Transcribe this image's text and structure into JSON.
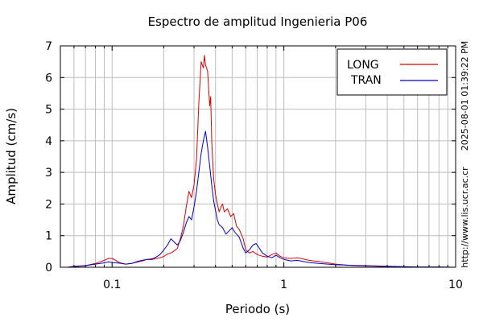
{
  "chart_data": {
    "type": "line",
    "title": "Espectro de amplitud Ingenieria P06",
    "xlabel": "Periodo (s)",
    "ylabel": "Amplitud (cm/s)",
    "x_scale": "log",
    "xlim": [
      0.05,
      10
    ],
    "ylim": [
      0,
      7
    ],
    "grid": true,
    "legend_position": "top-right",
    "x_tick_labels": [
      {
        "value": 0.1,
        "label": "0.1"
      },
      {
        "value": 1,
        "label": "1"
      },
      {
        "value": 10,
        "label": "10"
      }
    ],
    "y_tick_labels": [
      "0",
      "1",
      "2",
      "3",
      "4",
      "5",
      "6",
      "7"
    ],
    "timestamp": "2025-08-01 01:39:22 PM",
    "url": "http://www.lis.ucr.ac.cr",
    "series": [
      {
        "name": "LONG",
        "color": "#dd0000",
        "points": [
          [
            0.055,
            0.0
          ],
          [
            0.06,
            0.03
          ],
          [
            0.07,
            0.05
          ],
          [
            0.08,
            0.12
          ],
          [
            0.09,
            0.22
          ],
          [
            0.095,
            0.28
          ],
          [
            0.1,
            0.28
          ],
          [
            0.105,
            0.22
          ],
          [
            0.11,
            0.15
          ],
          [
            0.12,
            0.1
          ],
          [
            0.13,
            0.12
          ],
          [
            0.14,
            0.16
          ],
          [
            0.15,
            0.2
          ],
          [
            0.16,
            0.25
          ],
          [
            0.17,
            0.24
          ],
          [
            0.18,
            0.28
          ],
          [
            0.19,
            0.3
          ],
          [
            0.2,
            0.34
          ],
          [
            0.21,
            0.42
          ],
          [
            0.22,
            0.45
          ],
          [
            0.23,
            0.52
          ],
          [
            0.24,
            0.6
          ],
          [
            0.25,
            0.9
          ],
          [
            0.26,
            1.3
          ],
          [
            0.27,
            1.9
          ],
          [
            0.28,
            2.4
          ],
          [
            0.29,
            2.2
          ],
          [
            0.3,
            2.6
          ],
          [
            0.31,
            3.4
          ],
          [
            0.32,
            5.2
          ],
          [
            0.33,
            6.5
          ],
          [
            0.34,
            6.3
          ],
          [
            0.345,
            6.7
          ],
          [
            0.35,
            6.4
          ],
          [
            0.36,
            6.2
          ],
          [
            0.37,
            5.1
          ],
          [
            0.375,
            5.4
          ],
          [
            0.38,
            4.0
          ],
          [
            0.39,
            2.8
          ],
          [
            0.4,
            2.3
          ],
          [
            0.41,
            2.0
          ],
          [
            0.42,
            1.75
          ],
          [
            0.43,
            1.9
          ],
          [
            0.44,
            2.0
          ],
          [
            0.45,
            1.75
          ],
          [
            0.47,
            1.85
          ],
          [
            0.49,
            1.6
          ],
          [
            0.51,
            1.7
          ],
          [
            0.53,
            1.3
          ],
          [
            0.55,
            1.2
          ],
          [
            0.58,
            0.9
          ],
          [
            0.6,
            0.55
          ],
          [
            0.63,
            0.45
          ],
          [
            0.66,
            0.5
          ],
          [
            0.7,
            0.4
          ],
          [
            0.75,
            0.35
          ],
          [
            0.8,
            0.32
          ],
          [
            0.85,
            0.4
          ],
          [
            0.9,
            0.45
          ],
          [
            0.95,
            0.35
          ],
          [
            1.0,
            0.3
          ],
          [
            1.1,
            0.28
          ],
          [
            1.2,
            0.3
          ],
          [
            1.3,
            0.26
          ],
          [
            1.4,
            0.22
          ],
          [
            1.6,
            0.18
          ],
          [
            1.8,
            0.14
          ],
          [
            2.0,
            0.1
          ],
          [
            2.3,
            0.07
          ],
          [
            2.6,
            0.05
          ],
          [
            3.0,
            0.04
          ],
          [
            3.5,
            0.03
          ],
          [
            4.0,
            0.02
          ],
          [
            4.3,
            0.0
          ]
        ]
      },
      {
        "name": "TRAN",
        "color": "#0000cc",
        "points": [
          [
            0.055,
            0.0
          ],
          [
            0.06,
            0.02
          ],
          [
            0.07,
            0.05
          ],
          [
            0.08,
            0.1
          ],
          [
            0.09,
            0.14
          ],
          [
            0.095,
            0.17
          ],
          [
            0.1,
            0.15
          ],
          [
            0.11,
            0.13
          ],
          [
            0.12,
            0.1
          ],
          [
            0.13,
            0.12
          ],
          [
            0.14,
            0.18
          ],
          [
            0.15,
            0.22
          ],
          [
            0.16,
            0.25
          ],
          [
            0.17,
            0.26
          ],
          [
            0.18,
            0.32
          ],
          [
            0.19,
            0.4
          ],
          [
            0.2,
            0.55
          ],
          [
            0.21,
            0.7
          ],
          [
            0.22,
            0.9
          ],
          [
            0.23,
            0.8
          ],
          [
            0.24,
            0.7
          ],
          [
            0.25,
            0.85
          ],
          [
            0.26,
            1.1
          ],
          [
            0.27,
            1.4
          ],
          [
            0.28,
            1.6
          ],
          [
            0.29,
            1.5
          ],
          [
            0.3,
            1.9
          ],
          [
            0.31,
            2.4
          ],
          [
            0.32,
            3.0
          ],
          [
            0.33,
            3.6
          ],
          [
            0.34,
            4.0
          ],
          [
            0.35,
            4.3
          ],
          [
            0.36,
            3.8
          ],
          [
            0.37,
            3.2
          ],
          [
            0.38,
            2.6
          ],
          [
            0.39,
            2.1
          ],
          [
            0.4,
            1.8
          ],
          [
            0.41,
            1.5
          ],
          [
            0.42,
            1.35
          ],
          [
            0.44,
            1.25
          ],
          [
            0.46,
            1.05
          ],
          [
            0.48,
            1.15
          ],
          [
            0.5,
            1.25
          ],
          [
            0.52,
            1.1
          ],
          [
            0.55,
            0.95
          ],
          [
            0.58,
            0.6
          ],
          [
            0.6,
            0.45
          ],
          [
            0.63,
            0.55
          ],
          [
            0.66,
            0.7
          ],
          [
            0.69,
            0.75
          ],
          [
            0.72,
            0.6
          ],
          [
            0.75,
            0.45
          ],
          [
            0.8,
            0.35
          ],
          [
            0.85,
            0.3
          ],
          [
            0.9,
            0.38
          ],
          [
            0.95,
            0.3
          ],
          [
            1.0,
            0.25
          ],
          [
            1.1,
            0.2
          ],
          [
            1.2,
            0.22
          ],
          [
            1.3,
            0.18
          ],
          [
            1.4,
            0.15
          ],
          [
            1.6,
            0.12
          ],
          [
            1.8,
            0.1
          ],
          [
            2.0,
            0.08
          ],
          [
            2.5,
            0.06
          ],
          [
            3.0,
            0.05
          ],
          [
            4.0,
            0.03
          ],
          [
            5.0,
            0.02
          ],
          [
            6.0,
            0.01
          ],
          [
            8.0,
            0.01
          ],
          [
            10.0,
            0.0
          ]
        ]
      }
    ]
  }
}
